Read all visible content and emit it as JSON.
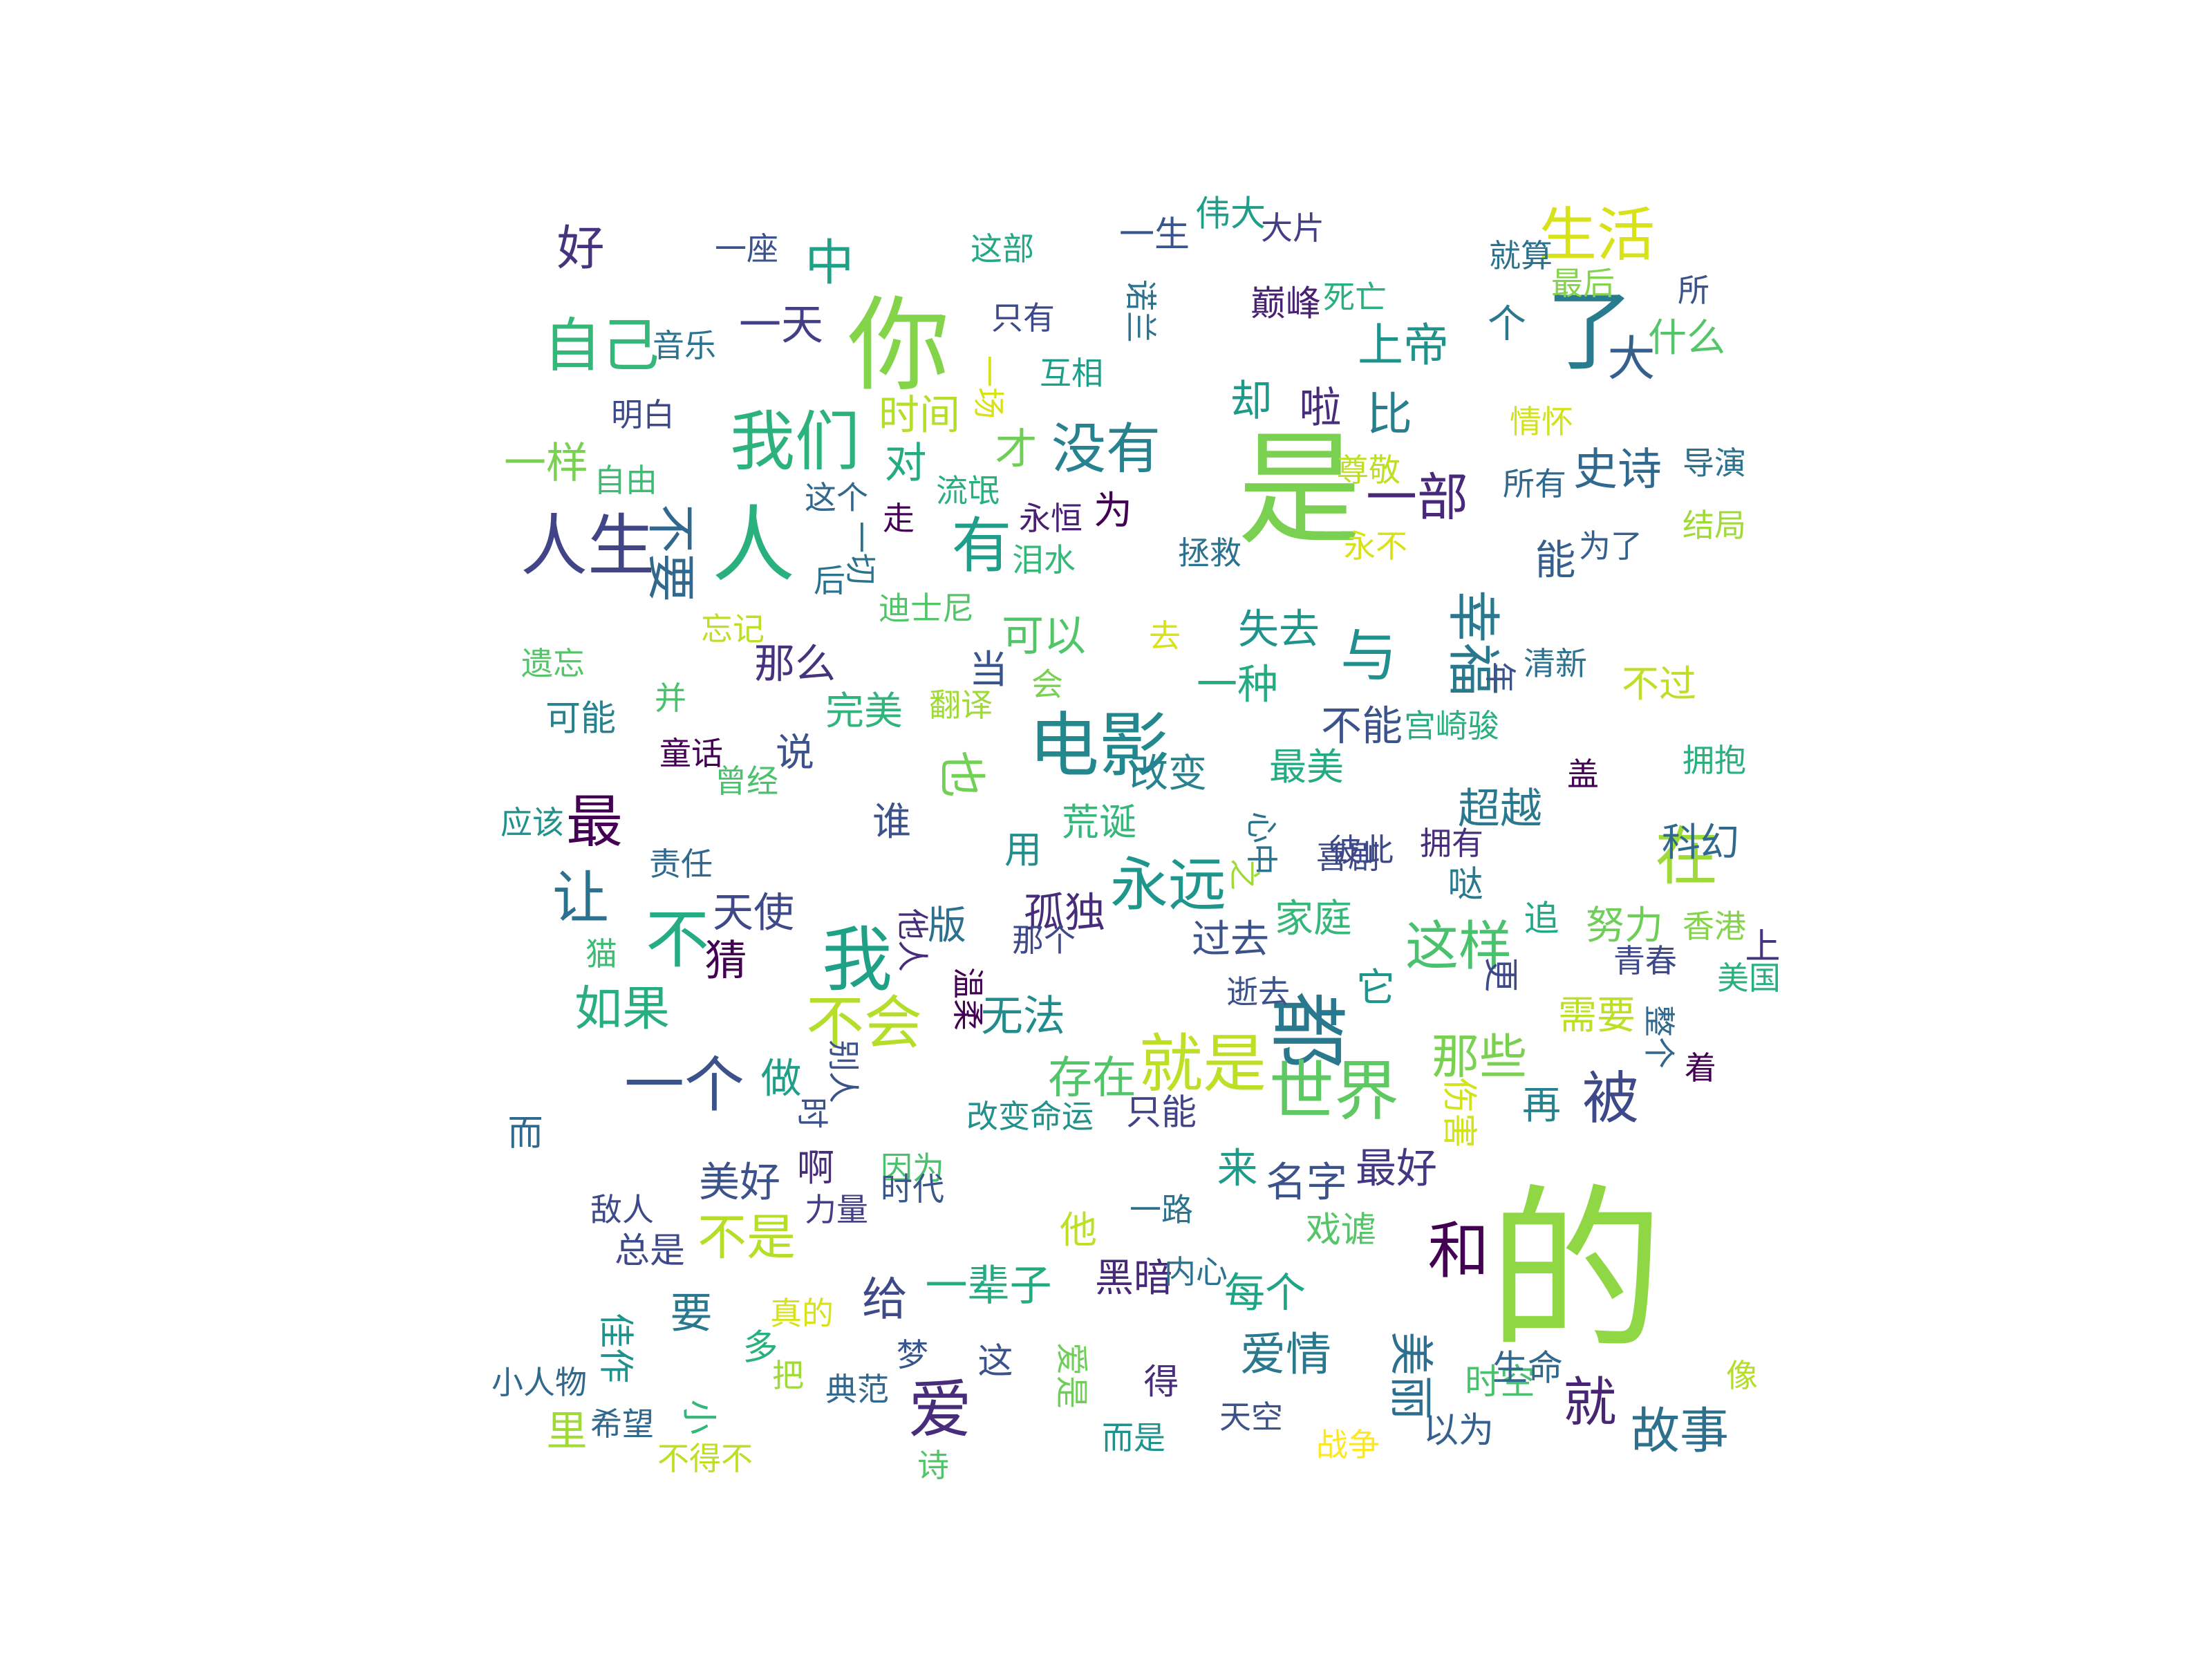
{
  "wordcloud": {
    "words": [
      {
        "text": "的",
        "weight": 100,
        "color": "#8fd744"
      },
      {
        "text": "是",
        "weight": 70,
        "color": "#7ad151"
      },
      {
        "text": "你",
        "weight": 58,
        "color": "#84d44b"
      },
      {
        "text": "了",
        "weight": 50,
        "color": "#287c8e"
      },
      {
        "text": "人",
        "weight": 47,
        "color": "#2ab07f"
      },
      {
        "text": "都",
        "weight": 44,
        "color": "#2a788e"
      },
      {
        "text": "电影",
        "weight": 40,
        "color": "#23888e"
      },
      {
        "text": "我",
        "weight": 40,
        "color": "#1fa188"
      },
      {
        "text": "人生",
        "weight": 38,
        "color": "#414487"
      },
      {
        "text": "我们",
        "weight": 37,
        "color": "#2db27d"
      },
      {
        "text": "世界",
        "weight": 37,
        "color": "#5ec962"
      },
      {
        "text": "就是",
        "weight": 36,
        "color": "#bddf26"
      },
      {
        "text": "不",
        "weight": 36,
        "color": "#25ac82"
      },
      {
        "text": "爱",
        "weight": 36,
        "color": "#472d7b"
      },
      {
        "text": "在",
        "weight": 36,
        "color": "#a0da39"
      },
      {
        "text": "和",
        "weight": 35,
        "color": "#440154"
      },
      {
        "text": "有",
        "weight": 34,
        "color": "#1f9e89"
      },
      {
        "text": "一个",
        "weight": 34,
        "color": "#3b528b"
      },
      {
        "text": "不会",
        "weight": 33,
        "color": "#b5de2b"
      },
      {
        "text": "永远",
        "weight": 33,
        "color": "#1f968b"
      },
      {
        "text": "自己",
        "weight": 33,
        "color": "#35b779"
      },
      {
        "text": "生活",
        "weight": 33,
        "color": "#d8e219"
      },
      {
        "text": "被",
        "weight": 32,
        "color": "#3e4989"
      },
      {
        "text": "最",
        "weight": 32,
        "color": "#440154"
      },
      {
        "text": "让",
        "weight": 32,
        "color": "#2c728e"
      },
      {
        "text": "与",
        "weight": 32,
        "color": "#218f8d"
      },
      {
        "text": "没有",
        "weight": 31,
        "color": "#26828e"
      },
      {
        "text": "这样",
        "weight": 30,
        "color": "#4ac16d"
      },
      {
        "text": "幸福",
        "weight": 30,
        "color": "#2a788e"
      },
      {
        "text": "就",
        "weight": 30,
        "color": "#482475"
      },
      {
        "text": "一部",
        "weight": 29,
        "color": "#482878"
      },
      {
        "text": "中",
        "weight": 28,
        "color": "#1fa188"
      },
      {
        "text": "不要",
        "weight": 28,
        "color": "#31688e"
      },
      {
        "text": "故事",
        "weight": 28,
        "color": "#2d708e"
      },
      {
        "text": "不是",
        "weight": 28,
        "color": "#b5de2b"
      },
      {
        "text": "如果",
        "weight": 27,
        "color": "#27ad81"
      },
      {
        "text": "大",
        "weight": 27,
        "color": "#355f8d"
      },
      {
        "text": "好",
        "weight": 27,
        "color": "#46337e"
      },
      {
        "text": "那些",
        "weight": 27,
        "color": "#7ad151"
      },
      {
        "text": "也",
        "weight": 27,
        "color": "#73d056"
      },
      {
        "text": "比",
        "weight": 26,
        "color": "#277f8e"
      },
      {
        "text": "给",
        "weight": 26,
        "color": "#3e4989"
      },
      {
        "text": "爱情",
        "weight": 26,
        "color": "#2a788e"
      },
      {
        "text": "上帝",
        "weight": 26,
        "color": "#20928c"
      },
      {
        "text": "史诗",
        "weight": 25,
        "color": "#31688e"
      },
      {
        "text": "美丽",
        "weight": 25,
        "color": "#2e6e8e"
      },
      {
        "text": "存在",
        "weight": 25,
        "color": "#52c569"
      },
      {
        "text": "一天",
        "weight": 24,
        "color": "#433e85"
      },
      {
        "text": "对",
        "weight": 24,
        "color": "#25ab82"
      },
      {
        "text": "一样",
        "weight": 24,
        "color": "#7ad151"
      },
      {
        "text": "却",
        "weight": 24,
        "color": "#1f9a8a"
      },
      {
        "text": "才",
        "weight": 24,
        "color": "#6ece58"
      },
      {
        "text": "猜",
        "weight": 24,
        "color": "#440154"
      },
      {
        "text": "无法",
        "weight": 24,
        "color": "#228c8d"
      },
      {
        "text": "可以",
        "weight": 24,
        "color": "#52c569"
      },
      {
        "text": "啦",
        "weight": 24,
        "color": "#472c7a"
      },
      {
        "text": "要",
        "weight": 24,
        "color": "#2a788e"
      },
      {
        "text": "一辈子",
        "weight": 24,
        "color": "#25ab82"
      },
      {
        "text": "超越",
        "weight": 24,
        "color": "#2a788e"
      },
      {
        "text": "那么",
        "weight": 23,
        "color": "#46337e"
      },
      {
        "text": "失去",
        "weight": 23,
        "color": "#1f948c"
      },
      {
        "text": "做",
        "weight": 23,
        "color": "#1f9f88"
      },
      {
        "text": "每个",
        "weight": 23,
        "color": "#20a486"
      },
      {
        "text": "一种",
        "weight": 23,
        "color": "#25ab82"
      },
      {
        "text": "里",
        "weight": 23,
        "color": "#a0da39"
      },
      {
        "text": "孤独",
        "weight": 23,
        "color": "#472c7a"
      },
      {
        "text": "名字",
        "weight": 23,
        "color": "#3b528b"
      },
      {
        "text": "美好",
        "weight": 23,
        "color": "#3b528b"
      },
      {
        "text": "最好",
        "weight": 23,
        "color": "#453781"
      },
      {
        "text": "来",
        "weight": 23,
        "color": "#1e9c89"
      },
      {
        "text": "时间",
        "weight": 23,
        "color": "#b5de2b"
      },
      {
        "text": "天使",
        "weight": 23,
        "color": "#3e4989"
      },
      {
        "text": "能",
        "weight": 23,
        "color": "#355f8d"
      },
      {
        "text": "不能",
        "weight": 23,
        "color": "#3b528b"
      },
      {
        "text": "再",
        "weight": 22,
        "color": "#26828e"
      },
      {
        "text": "需要",
        "weight": 22,
        "color": "#bddf26"
      },
      {
        "text": "努力",
        "weight": 22,
        "color": "#6ece58"
      },
      {
        "text": "科幻",
        "weight": 22,
        "color": "#31688e"
      },
      {
        "text": "改变",
        "weight": 22,
        "color": "#26828e"
      },
      {
        "text": "过去",
        "weight": 22,
        "color": "#3b528b"
      },
      {
        "text": "家庭",
        "weight": 22,
        "color": "#35b779"
      },
      {
        "text": "黑暗",
        "weight": 22,
        "color": "#482878"
      },
      {
        "text": "谁",
        "weight": 22,
        "color": "#3b528b"
      },
      {
        "text": "完美",
        "weight": 22,
        "color": "#2fb47c"
      },
      {
        "text": "版",
        "weight": 22,
        "color": "#2e6e8e"
      },
      {
        "text": "当",
        "weight": 22,
        "color": "#39568c"
      },
      {
        "text": "为",
        "weight": 22,
        "color": "#440154"
      },
      {
        "text": "说",
        "weight": 22,
        "color": "#3b528b"
      },
      {
        "text": "个",
        "weight": 22,
        "color": "#2a788e"
      },
      {
        "text": "它",
        "weight": 22,
        "color": "#1f968b"
      },
      {
        "text": "什么",
        "weight": 22,
        "color": "#54c568"
      },
      {
        "text": "荒诞",
        "weight": 21,
        "color": "#35b779"
      },
      {
        "text": "最美",
        "weight": 21,
        "color": "#25ab82"
      },
      {
        "text": "不过",
        "weight": 21,
        "color": "#bddf26"
      },
      {
        "text": "啊",
        "weight": 21,
        "color": "#472d7b"
      },
      {
        "text": "他",
        "weight": 21,
        "color": "#bddf26"
      },
      {
        "text": "用",
        "weight": 21,
        "color": "#218f8d"
      },
      {
        "text": "可能",
        "weight": 20,
        "color": "#26828e"
      },
      {
        "text": "只能",
        "weight": 20,
        "color": "#414487"
      },
      {
        "text": "伟大",
        "weight": 20,
        "color": "#1f9e89"
      },
      {
        "text": "一生",
        "weight": 20,
        "color": "#39568c"
      },
      {
        "text": "巅峰",
        "weight": 20,
        "color": "#482173"
      },
      {
        "text": "这",
        "weight": 20,
        "color": "#3b528b"
      },
      {
        "text": "小",
        "weight": 20,
        "color": "#35b779"
      },
      {
        "text": "多",
        "weight": 20,
        "color": "#2ab07f"
      },
      {
        "text": "而",
        "weight": 20,
        "color": "#31688e"
      },
      {
        "text": "伤害",
        "weight": 20,
        "color": "#d2e21b"
      },
      {
        "text": "追",
        "weight": 20,
        "color": "#22a884"
      },
      {
        "text": "哒",
        "weight": 20,
        "color": "#2a788e"
      },
      {
        "text": "更",
        "weight": 20,
        "color": "#3e4989"
      },
      {
        "text": "上",
        "weight": 20,
        "color": "#46337e"
      },
      {
        "text": "以为",
        "weight": 20,
        "color": "#355f8d"
      },
      {
        "text": "时空",
        "weight": 20,
        "color": "#4ac16d"
      },
      {
        "text": "得",
        "weight": 20,
        "color": "#472d7b"
      },
      {
        "text": "佳作",
        "weight": 20,
        "color": "#21918c"
      },
      {
        "text": "总是",
        "weight": 20,
        "color": "#3e4989"
      },
      {
        "text": "生命",
        "weight": 20,
        "color": "#31688e"
      },
      {
        "text": "戏谑",
        "weight": 20,
        "color": "#54c568"
      },
      {
        "text": "爱是",
        "weight": 19,
        "color": "#6ece58"
      },
      {
        "text": "音乐",
        "weight": 18,
        "color": "#2c728e"
      },
      {
        "text": "一场",
        "weight": 18,
        "color": "#d8e219"
      },
      {
        "text": "诺兰",
        "weight": 18,
        "color": "#2c728e"
      },
      {
        "text": "死亡",
        "weight": 18,
        "color": "#2ab07f"
      },
      {
        "text": "互相",
        "weight": 18,
        "color": "#1f9e89"
      },
      {
        "text": "大片",
        "weight": 18,
        "color": "#433e85"
      },
      {
        "text": "最后",
        "weight": 18,
        "color": "#84d44b"
      },
      {
        "text": "就算",
        "weight": 18,
        "color": "#2c728e"
      },
      {
        "text": "所",
        "weight": 18,
        "color": "#3b528b"
      },
      {
        "text": "一座",
        "weight": 18,
        "color": "#3b528b"
      },
      {
        "text": "这部",
        "weight": 18,
        "color": "#22a884"
      },
      {
        "text": "只有",
        "weight": 18,
        "color": "#3e4989"
      },
      {
        "text": "明白",
        "weight": 18,
        "color": "#3e4989"
      },
      {
        "text": "自由",
        "weight": 18,
        "color": "#3fbc73"
      },
      {
        "text": "这个",
        "weight": 18,
        "color": "#31688e"
      },
      {
        "text": "流氓",
        "weight": 18,
        "color": "#2ab07f"
      },
      {
        "text": "永恒",
        "weight": 18,
        "color": "#482173"
      },
      {
        "text": "尊敬",
        "weight": 18,
        "color": "#bddf26"
      },
      {
        "text": "情怀",
        "weight": 18,
        "color": "#d2e21b"
      },
      {
        "text": "导演",
        "weight": 18,
        "color": "#2c728e"
      },
      {
        "text": "所有",
        "weight": 18,
        "color": "#31688e"
      },
      {
        "text": "走",
        "weight": 18,
        "color": "#440154"
      },
      {
        "text": "一切",
        "weight": 18,
        "color": "#2c728e"
      },
      {
        "text": "后",
        "weight": 18,
        "color": "#2c728e"
      },
      {
        "text": "泪水",
        "weight": 18,
        "color": "#35b779"
      },
      {
        "text": "拯救",
        "weight": 18,
        "color": "#2c728e"
      },
      {
        "text": "永不",
        "weight": 18,
        "color": "#d8e219"
      },
      {
        "text": "为了",
        "weight": 18,
        "color": "#355f8d"
      },
      {
        "text": "结局",
        "weight": 18,
        "color": "#a0da39"
      },
      {
        "text": "迪士尼",
        "weight": 18,
        "color": "#52c569"
      },
      {
        "text": "忘记",
        "weight": 18,
        "color": "#bddf26"
      },
      {
        "text": "去",
        "weight": 18,
        "color": "#d8e219"
      },
      {
        "text": "会",
        "weight": 18,
        "color": "#7ad151"
      },
      {
        "text": "遗忘",
        "weight": 18,
        "color": "#54c568"
      },
      {
        "text": "并",
        "weight": 18,
        "color": "#4ac16d"
      },
      {
        "text": "翻译",
        "weight": 18,
        "color": "#a0da39"
      },
      {
        "text": "年",
        "weight": 18,
        "color": "#3b528b"
      },
      {
        "text": "清新",
        "weight": 18,
        "color": "#2c728e"
      },
      {
        "text": "宫崎骏",
        "weight": 18,
        "color": "#2ab07f"
      },
      {
        "text": "童话",
        "weight": 18,
        "color": "#440154"
      },
      {
        "text": "曾经",
        "weight": 18,
        "color": "#4ac16d"
      },
      {
        "text": "盖",
        "weight": 18,
        "color": "#440154"
      },
      {
        "text": "拥抱",
        "weight": 18,
        "color": "#2ab07f"
      },
      {
        "text": "应该",
        "weight": 18,
        "color": "#21918c"
      },
      {
        "text": "心中",
        "weight": 18,
        "color": "#2c728e"
      },
      {
        "text": "彼此",
        "weight": 18,
        "color": "#3e4989"
      },
      {
        "text": "喜剧",
        "weight": 18,
        "color": "#3e4989"
      },
      {
        "text": "拥有",
        "weight": 18,
        "color": "#472d7b"
      },
      {
        "text": "责任",
        "weight": 18,
        "color": "#31688e"
      },
      {
        "text": "之",
        "weight": 18,
        "color": "#a0da39"
      },
      {
        "text": "香港",
        "weight": 18,
        "color": "#84d44b"
      },
      {
        "text": "猫",
        "weight": 18,
        "color": "#3fbc73"
      },
      {
        "text": "他人",
        "weight": 18,
        "color": "#472d7b"
      },
      {
        "text": "那个",
        "weight": 18,
        "color": "#3e4989"
      },
      {
        "text": "青春",
        "weight": 18,
        "color": "#3e4989"
      },
      {
        "text": "美国",
        "weight": 18,
        "color": "#2ab07f"
      },
      {
        "text": "温柔",
        "weight": 18,
        "color": "#440154"
      },
      {
        "text": "逝去",
        "weight": 18,
        "color": "#3b528b"
      },
      {
        "text": "整个",
        "weight": 18,
        "color": "#31688e"
      },
      {
        "text": "着",
        "weight": 18,
        "color": "#440154"
      },
      {
        "text": "别人",
        "weight": 18,
        "color": "#3b528b"
      },
      {
        "text": "时",
        "weight": 18,
        "color": "#3b528b"
      },
      {
        "text": "改变命运",
        "weight": 18,
        "color": "#21918c"
      },
      {
        "text": "因为",
        "weight": 18,
        "color": "#4ac16d"
      },
      {
        "text": "时代",
        "weight": 18,
        "color": "#39568c"
      },
      {
        "text": "敌人",
        "weight": 18,
        "color": "#3e4989"
      },
      {
        "text": "力量",
        "weight": 18,
        "color": "#433e85"
      },
      {
        "text": "一路",
        "weight": 18,
        "color": "#2c728e"
      },
      {
        "text": "内心",
        "weight": 18,
        "color": "#2c728e"
      },
      {
        "text": "真的",
        "weight": 18,
        "color": "#d8e219"
      },
      {
        "text": "梦",
        "weight": 18,
        "color": "#39568c"
      },
      {
        "text": "小人物",
        "weight": 18,
        "color": "#31688e"
      },
      {
        "text": "把",
        "weight": 18,
        "color": "#a0da39"
      },
      {
        "text": "典范",
        "weight": 18,
        "color": "#31688e"
      },
      {
        "text": "天空",
        "weight": 18,
        "color": "#3b528b"
      },
      {
        "text": "像",
        "weight": 18,
        "color": "#b5de2b"
      },
      {
        "text": "希望",
        "weight": 18,
        "color": "#31688e"
      },
      {
        "text": "不得不",
        "weight": 18,
        "color": "#bddf26"
      },
      {
        "text": "诗",
        "weight": 18,
        "color": "#52c569"
      },
      {
        "text": "而是",
        "weight": 18,
        "color": "#21918c"
      },
      {
        "text": "战争",
        "weight": 18,
        "color": "#fde725"
      }
    ]
  }
}
